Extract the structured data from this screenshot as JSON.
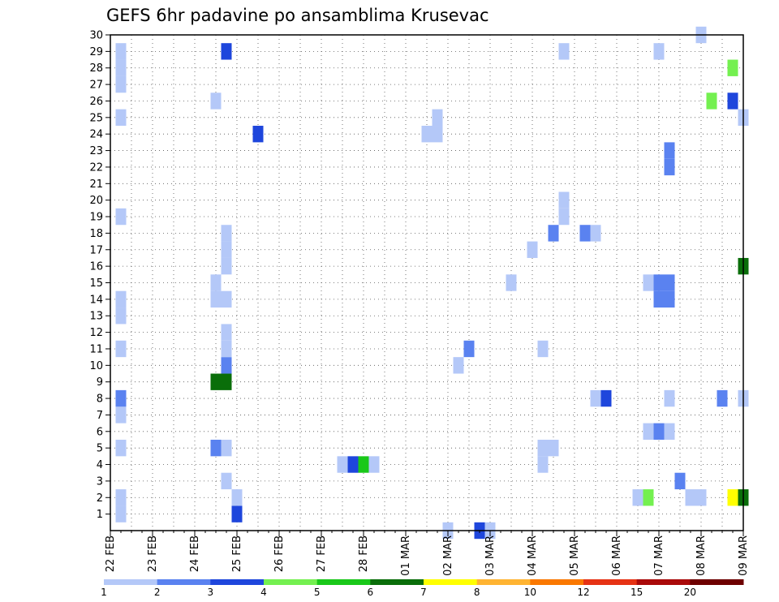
{
  "chart_data": {
    "type": "heatmap",
    "title": "GEFS 6hr padavine po ansamblima Krusevac",
    "y_ticks": [
      "1",
      "2",
      "3",
      "4",
      "5",
      "6",
      "7",
      "8",
      "9",
      "10",
      "11",
      "12",
      "13",
      "14",
      "15",
      "16",
      "17",
      "18",
      "19",
      "20",
      "21",
      "22",
      "23",
      "24",
      "25",
      "26",
      "27",
      "28",
      "29",
      "30"
    ],
    "x_ticks": [
      "22 FEB",
      "23 FEB",
      "24 FEB",
      "25 FEB",
      "26 FEB",
      "27 FEB",
      "28 FEB",
      "01 MAR",
      "02 MAR",
      "03 MAR",
      "04 MAR",
      "05 MAR",
      "06 MAR",
      "07 MAR",
      "08 MAR",
      "09 MAR"
    ],
    "ylim": [
      0,
      30
    ],
    "xlim_days": [
      0,
      15
    ],
    "grid": true,
    "legend_placement": "bottom",
    "colorbar": {
      "ticks": [
        "1",
        "2",
        "3",
        "4",
        "5",
        "6",
        "7",
        "8",
        "10",
        "12",
        "15",
        "20"
      ],
      "colors": [
        "#b4c8f8",
        "#5a82f0",
        "#1e46dc",
        "#74f050",
        "#19c819",
        "#0a6e0a",
        "#ffff00",
        "#ffb432",
        "#fa7800",
        "#e63214",
        "#aa0a0a",
        "#6e0000"
      ]
    },
    "cells": [
      {
        "m": 1,
        "d": 0.25,
        "l": 1
      },
      {
        "m": 2,
        "d": 0.25,
        "l": 1
      },
      {
        "m": 5,
        "d": 0.25,
        "l": 1
      },
      {
        "m": 7,
        "d": 0.25,
        "l": 1
      },
      {
        "m": 8,
        "d": 0.25,
        "l": 2
      },
      {
        "m": 11,
        "d": 0.25,
        "l": 1
      },
      {
        "m": 13,
        "d": 0.25,
        "l": 1
      },
      {
        "m": 14,
        "d": 0.25,
        "l": 1
      },
      {
        "m": 19,
        "d": 0.25,
        "l": 1
      },
      {
        "m": 25,
        "d": 0.25,
        "l": 1
      },
      {
        "m": 27,
        "d": 0.25,
        "l": 1
      },
      {
        "m": 28,
        "d": 0.25,
        "l": 1
      },
      {
        "m": 29,
        "d": 0.25,
        "l": 1
      },
      {
        "m": 5,
        "d": 2.5,
        "l": 2
      },
      {
        "m": 9,
        "d": 2.5,
        "l": 6
      },
      {
        "m": 14,
        "d": 2.5,
        "l": 1
      },
      {
        "m": 15,
        "d": 2.5,
        "l": 1
      },
      {
        "m": 26,
        "d": 2.5,
        "l": 1
      },
      {
        "m": 3,
        "d": 2.75,
        "l": 1
      },
      {
        "m": 5,
        "d": 2.75,
        "l": 1
      },
      {
        "m": 9,
        "d": 2.75,
        "l": 6
      },
      {
        "m": 10,
        "d": 2.75,
        "l": 2
      },
      {
        "m": 11,
        "d": 2.75,
        "l": 1
      },
      {
        "m": 12,
        "d": 2.75,
        "l": 1
      },
      {
        "m": 14,
        "d": 2.75,
        "l": 1
      },
      {
        "m": 16,
        "d": 2.75,
        "l": 1
      },
      {
        "m": 17,
        "d": 2.75,
        "l": 1
      },
      {
        "m": 18,
        "d": 2.75,
        "l": 1
      },
      {
        "m": 29,
        "d": 2.75,
        "l": 3
      },
      {
        "m": 1,
        "d": 3.0,
        "l": 3
      },
      {
        "m": 2,
        "d": 3.0,
        "l": 1
      },
      {
        "m": 24,
        "d": 3.5,
        "l": 3
      },
      {
        "m": 4,
        "d": 5.5,
        "l": 1
      },
      {
        "m": 4,
        "d": 5.75,
        "l": 3
      },
      {
        "m": 4,
        "d": 6.0,
        "l": 5
      },
      {
        "m": 4,
        "d": 6.25,
        "l": 1
      },
      {
        "m": 24,
        "d": 7.5,
        "l": 1
      },
      {
        "m": 24,
        "d": 7.75,
        "l": 1
      },
      {
        "m": 25,
        "d": 7.75,
        "l": 1
      },
      {
        "m": 0,
        "d": 8.0,
        "l": 1
      },
      {
        "m": 10,
        "d": 8.25,
        "l": 1
      },
      {
        "m": 11,
        "d": 8.5,
        "l": 2
      },
      {
        "m": 0,
        "d": 8.75,
        "l": 3
      },
      {
        "m": 0,
        "d": 9.0,
        "l": 1
      },
      {
        "m": 15,
        "d": 9.5,
        "l": 1
      },
      {
        "m": 17,
        "d": 10.0,
        "l": 1
      },
      {
        "m": 4,
        "d": 10.25,
        "l": 1
      },
      {
        "m": 5,
        "d": 10.25,
        "l": 1
      },
      {
        "m": 11,
        "d": 10.25,
        "l": 1
      },
      {
        "m": 5,
        "d": 10.5,
        "l": 1
      },
      {
        "m": 18,
        "d": 10.5,
        "l": 2
      },
      {
        "m": 29,
        "d": 10.75,
        "l": 1
      },
      {
        "m": 20,
        "d": 10.75,
        "l": 1
      },
      {
        "m": 19,
        "d": 10.75,
        "l": 1
      },
      {
        "m": 18,
        "d": 11.25,
        "l": 2
      },
      {
        "m": 18,
        "d": 11.5,
        "l": 1
      },
      {
        "m": 8,
        "d": 11.5,
        "l": 1
      },
      {
        "m": 8,
        "d": 11.75,
        "l": 3
      },
      {
        "m": 2,
        "d": 12.5,
        "l": 1
      },
      {
        "m": 2,
        "d": 12.75,
        "l": 4
      },
      {
        "m": 6,
        "d": 12.75,
        "l": 1
      },
      {
        "m": 15,
        "d": 12.75,
        "l": 1
      },
      {
        "m": 6,
        "d": 13.0,
        "l": 2
      },
      {
        "m": 14,
        "d": 13.0,
        "l": 2
      },
      {
        "m": 15,
        "d": 13.0,
        "l": 2
      },
      {
        "m": 29,
        "d": 13.0,
        "l": 1
      },
      {
        "m": 6,
        "d": 13.25,
        "l": 1
      },
      {
        "m": 8,
        "d": 13.25,
        "l": 1
      },
      {
        "m": 14,
        "d": 13.25,
        "l": 2
      },
      {
        "m": 15,
        "d": 13.25,
        "l": 2
      },
      {
        "m": 22,
        "d": 13.25,
        "l": 2
      },
      {
        "m": 23,
        "d": 13.25,
        "l": 2
      },
      {
        "m": 3,
        "d": 13.5,
        "l": 2
      },
      {
        "m": 2,
        "d": 13.75,
        "l": 1
      },
      {
        "m": 2,
        "d": 14.0,
        "l": 1
      },
      {
        "m": 30,
        "d": 14.0,
        "l": 1
      },
      {
        "m": 26,
        "d": 14.25,
        "l": 4
      },
      {
        "m": 8,
        "d": 14.5,
        "l": 2
      },
      {
        "m": 2,
        "d": 14.75,
        "l": 7
      },
      {
        "m": 26,
        "d": 14.75,
        "l": 3
      },
      {
        "m": 28,
        "d": 14.75,
        "l": 4
      },
      {
        "m": 2,
        "d": 15.0,
        "l": 6
      },
      {
        "m": 8,
        "d": 15.0,
        "l": 1
      },
      {
        "m": 16,
        "d": 15.0,
        "l": 6
      },
      {
        "m": 25,
        "d": 15.0,
        "l": 1
      }
    ]
  }
}
